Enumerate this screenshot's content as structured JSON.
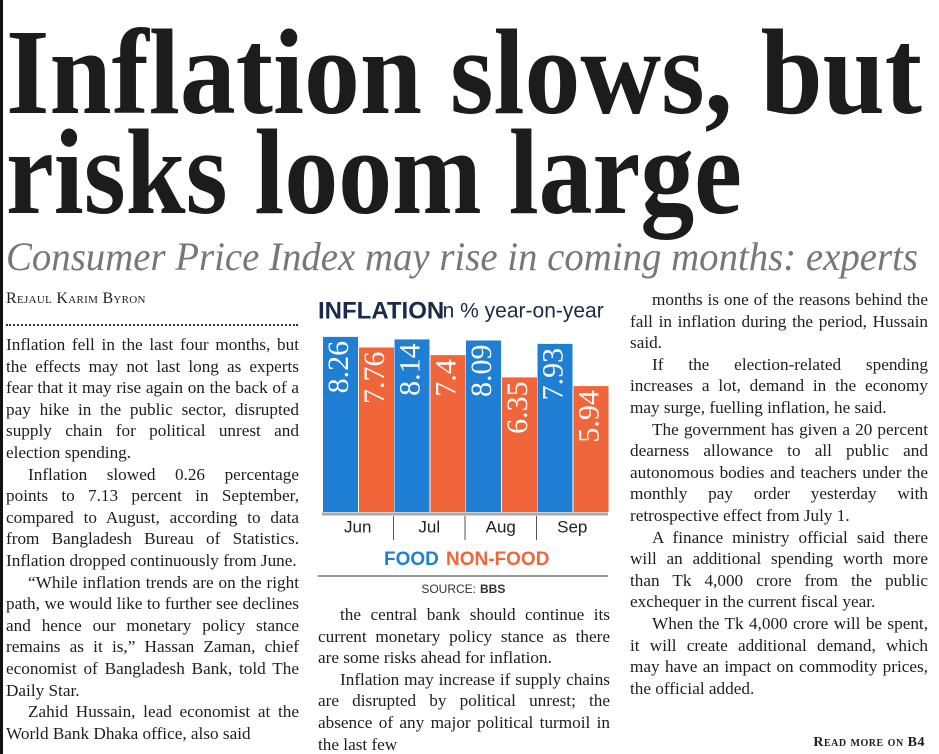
{
  "headline": [
    "Inflation slows, but",
    "risks loom large"
  ],
  "subheadline": "Consumer Price Index may rise in coming months: experts",
  "byline": "Rejaul Karim Byron",
  "columns": [
    [
      "Inflation fell in the last four months, but the effects may not last long as experts fear that it may rise again on the back of a pay hike in the public sector, disrupted supply chain for political unrest and election spending.",
      "Inflation slowed 0.26 percentage points to 7.13 percent in September, compared to August, according to data from Bangladesh Bureau of Statistics. Inflation dropped continuously from June.",
      "“While inflation trends are on the right path, we would like to further see declines and hence our monetary policy stance remains as it is,” Hassan Zaman, chief economist of Bangladesh Bank, told The Daily Star.",
      "Zahid Hussain, lead economist at the World Bank Dhaka office, also said"
    ],
    [
      "the central bank should continue its current monetary policy stance as there are some risks ahead for inflation.",
      "Inflation may increase if supply chains are disrupted by political unrest; the absence of any major political turmoil in the last few"
    ],
    [
      "months is one of the reasons behind the fall in inflation during the period, Hussain said.",
      "If the election-related spending increases a lot, demand in the economy may surge, fuelling inflation, he said.",
      "The government has given a 20 percent dearness allowance to all public and autonomous bodies and teachers under the monthly pay order yesterday with retrospective effect from July 1.",
      "A finance ministry official said there will an additional spending worth more than Tk 4,000 crore from the public exchequer in the current fiscal year.",
      "When the Tk 4,000 crore will be spent, it will create additional demand, which may have an impact on commodity prices, the official added."
    ]
  ],
  "read_more": "Read more on B4",
  "chart_data": {
    "type": "bar",
    "title": "INFLATION",
    "subtitle": "in % year-on-year",
    "categories": [
      "Jun",
      "Jul",
      "Aug",
      "Sep"
    ],
    "series": [
      {
        "name": "FOOD",
        "color": "#1f7fd4",
        "values": [
          8.26,
          8.14,
          8.09,
          7.93
        ]
      },
      {
        "name": "NON-FOOD",
        "color": "#f0663a",
        "values": [
          7.76,
          7.4,
          6.35,
          5.94
        ]
      }
    ],
    "source_label": "SOURCE:",
    "source": "BBS"
  }
}
